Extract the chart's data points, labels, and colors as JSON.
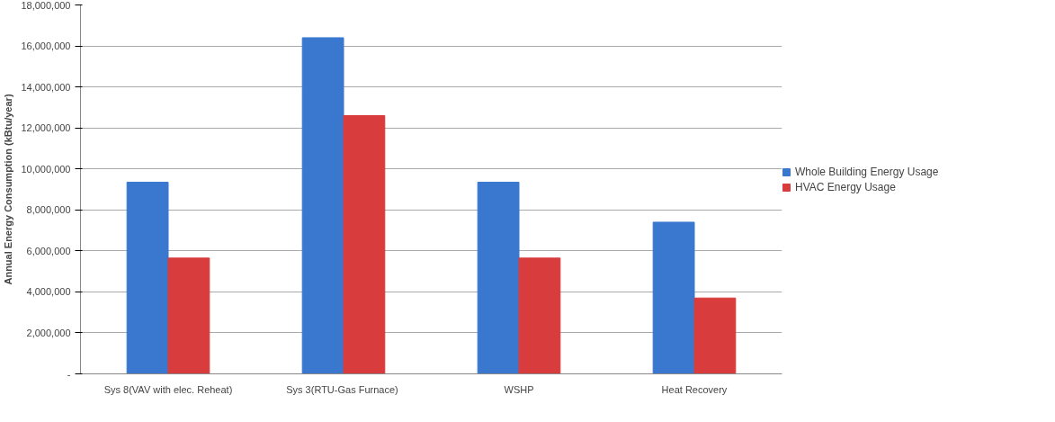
{
  "chart_data": {
    "type": "bar",
    "ylabel": "Annual Energy Consumption (kBtu/year)",
    "categories": [
      "Sys 8(VAV with elec. Reheat)",
      "Sys 3(RTU-Gas  Furnace)",
      "WSHP",
      "Heat Recovery"
    ],
    "series": [
      {
        "name": "Whole Building Energy Usage",
        "color": "#3a78d0",
        "values": [
          9350000,
          16400000,
          9350000,
          7400000
        ]
      },
      {
        "name": "HVAC Energy Usage",
        "color": "#d83c3c",
        "values": [
          5650000,
          12600000,
          5650000,
          3700000
        ]
      }
    ],
    "ylim": [
      0,
      18000000
    ],
    "yticks": [
      {
        "value": 0,
        "label": "-"
      },
      {
        "value": 2000000,
        "label": "2,000,000"
      },
      {
        "value": 4000000,
        "label": "4,000,000"
      },
      {
        "value": 6000000,
        "label": "6,000,000"
      },
      {
        "value": 8000000,
        "label": "8,000,000"
      },
      {
        "value": 10000000,
        "label": "10,000,000"
      },
      {
        "value": 12000000,
        "label": "12,000,000"
      },
      {
        "value": 14000000,
        "label": "14,000,000"
      },
      {
        "value": 16000000,
        "label": "16,000,000"
      },
      {
        "value": 18000000,
        "label": "18,000,000"
      }
    ],
    "grid": "y",
    "legend": "right"
  }
}
